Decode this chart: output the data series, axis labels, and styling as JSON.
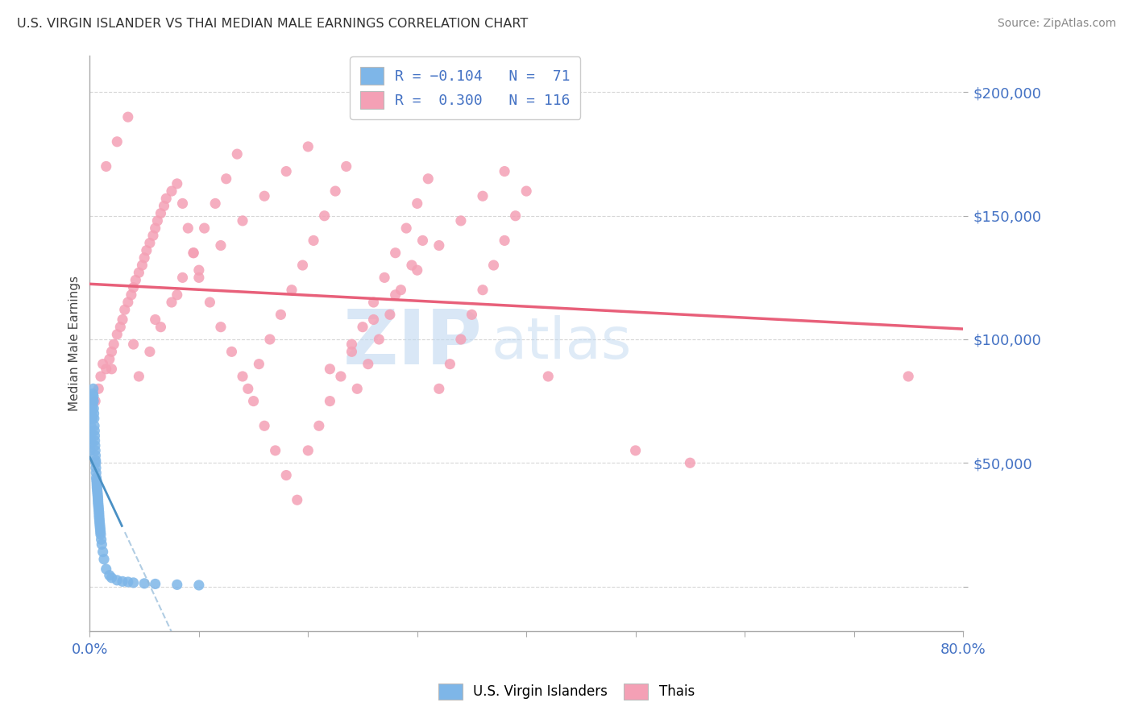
{
  "title": "U.S. VIRGIN ISLANDER VS THAI MEDIAN MALE EARNINGS CORRELATION CHART",
  "source": "Source: ZipAtlas.com",
  "ylabel": "Median Male Earnings",
  "y_ticks": [
    0,
    50000,
    100000,
    150000,
    200000
  ],
  "y_tick_labels": [
    "",
    "$50,000",
    "$100,000",
    "$150,000",
    "$200,000"
  ],
  "xmin": 0.0,
  "xmax": 80.0,
  "ymin": -18000,
  "ymax": 215000,
  "color_vi": "#7EB6E8",
  "color_thai": "#F4A0B5",
  "color_vi_line_solid": "#4A90C4",
  "color_vi_line_dash": "#90B8D8",
  "color_thai_line": "#E8607A",
  "watermark1": "ZIP",
  "watermark2": "atlas",
  "watermark_color": "#C0D8F0",
  "vi_x": [
    0.05,
    0.08,
    0.1,
    0.12,
    0.14,
    0.15,
    0.16,
    0.18,
    0.2,
    0.22,
    0.24,
    0.25,
    0.26,
    0.28,
    0.3,
    0.32,
    0.34,
    0.35,
    0.36,
    0.38,
    0.4,
    0.42,
    0.44,
    0.45,
    0.46,
    0.48,
    0.5,
    0.52,
    0.54,
    0.55,
    0.56,
    0.58,
    0.6,
    0.62,
    0.64,
    0.65,
    0.66,
    0.68,
    0.7,
    0.72,
    0.74,
    0.75,
    0.76,
    0.78,
    0.8,
    0.82,
    0.84,
    0.85,
    0.86,
    0.88,
    0.9,
    0.92,
    0.94,
    0.96,
    0.98,
    1.0,
    1.05,
    1.1,
    1.2,
    1.3,
    1.5,
    1.8,
    2.0,
    2.5,
    3.0,
    3.5,
    4.0,
    5.0,
    6.0,
    8.0,
    10.0
  ],
  "vi_y": [
    55000,
    60000,
    65000,
    62000,
    58000,
    70000,
    68000,
    72000,
    75000,
    73000,
    68000,
    71000,
    74000,
    76000,
    78000,
    80000,
    77000,
    75000,
    72000,
    70000,
    68000,
    65000,
    63000,
    61000,
    59000,
    57000,
    55000,
    53000,
    51000,
    50000,
    48000,
    46000,
    44000,
    43000,
    42000,
    41000,
    40000,
    39000,
    38000,
    37000,
    36000,
    35000,
    34000,
    33000,
    32000,
    31000,
    30000,
    29000,
    28000,
    27000,
    26000,
    25000,
    24000,
    23000,
    22000,
    21000,
    19000,
    17000,
    14000,
    11000,
    7000,
    4500,
    3500,
    2500,
    2000,
    1800,
    1500,
    1200,
    1000,
    700,
    500
  ],
  "thai_x": [
    0.5,
    0.8,
    1.0,
    1.2,
    1.5,
    1.8,
    2.0,
    2.2,
    2.5,
    2.8,
    3.0,
    3.2,
    3.5,
    3.8,
    4.0,
    4.2,
    4.5,
    4.8,
    5.0,
    5.2,
    5.5,
    5.8,
    6.0,
    6.2,
    6.5,
    6.8,
    7.0,
    7.5,
    8.0,
    8.5,
    9.0,
    9.5,
    10.0,
    11.0,
    12.0,
    13.0,
    14.0,
    15.0,
    16.0,
    17.0,
    18.0,
    19.0,
    20.0,
    21.0,
    22.0,
    23.0,
    24.0,
    25.0,
    26.0,
    27.0,
    28.0,
    29.0,
    30.0,
    31.0,
    32.0,
    33.0,
    34.0,
    35.0,
    36.0,
    37.0,
    38.0,
    39.0,
    40.0,
    1.5,
    2.5,
    3.5,
    4.5,
    5.5,
    6.5,
    7.5,
    8.5,
    9.5,
    10.5,
    11.5,
    12.5,
    13.5,
    14.5,
    15.5,
    16.5,
    17.5,
    18.5,
    19.5,
    20.5,
    21.5,
    22.5,
    23.5,
    24.5,
    25.5,
    26.5,
    27.5,
    28.5,
    29.5,
    30.5,
    2.0,
    4.0,
    6.0,
    8.0,
    10.0,
    12.0,
    14.0,
    16.0,
    18.0,
    20.0,
    22.0,
    24.0,
    26.0,
    28.0,
    30.0,
    32.0,
    34.0,
    36.0,
    38.0,
    42.0,
    50.0,
    55.0,
    75.0
  ],
  "thai_y": [
    75000,
    80000,
    85000,
    90000,
    88000,
    92000,
    95000,
    98000,
    102000,
    105000,
    108000,
    112000,
    115000,
    118000,
    121000,
    124000,
    127000,
    130000,
    133000,
    136000,
    139000,
    142000,
    145000,
    148000,
    151000,
    154000,
    157000,
    160000,
    163000,
    155000,
    145000,
    135000,
    125000,
    115000,
    105000,
    95000,
    85000,
    75000,
    65000,
    55000,
    45000,
    35000,
    55000,
    65000,
    75000,
    85000,
    95000,
    105000,
    115000,
    125000,
    135000,
    145000,
    155000,
    165000,
    80000,
    90000,
    100000,
    110000,
    120000,
    130000,
    140000,
    150000,
    160000,
    170000,
    180000,
    190000,
    85000,
    95000,
    105000,
    115000,
    125000,
    135000,
    145000,
    155000,
    165000,
    175000,
    80000,
    90000,
    100000,
    110000,
    120000,
    130000,
    140000,
    150000,
    160000,
    170000,
    80000,
    90000,
    100000,
    110000,
    120000,
    130000,
    140000,
    88000,
    98000,
    108000,
    118000,
    128000,
    138000,
    148000,
    158000,
    168000,
    178000,
    88000,
    98000,
    108000,
    118000,
    128000,
    138000,
    148000,
    158000,
    168000,
    85000,
    55000,
    50000,
    85000
  ]
}
